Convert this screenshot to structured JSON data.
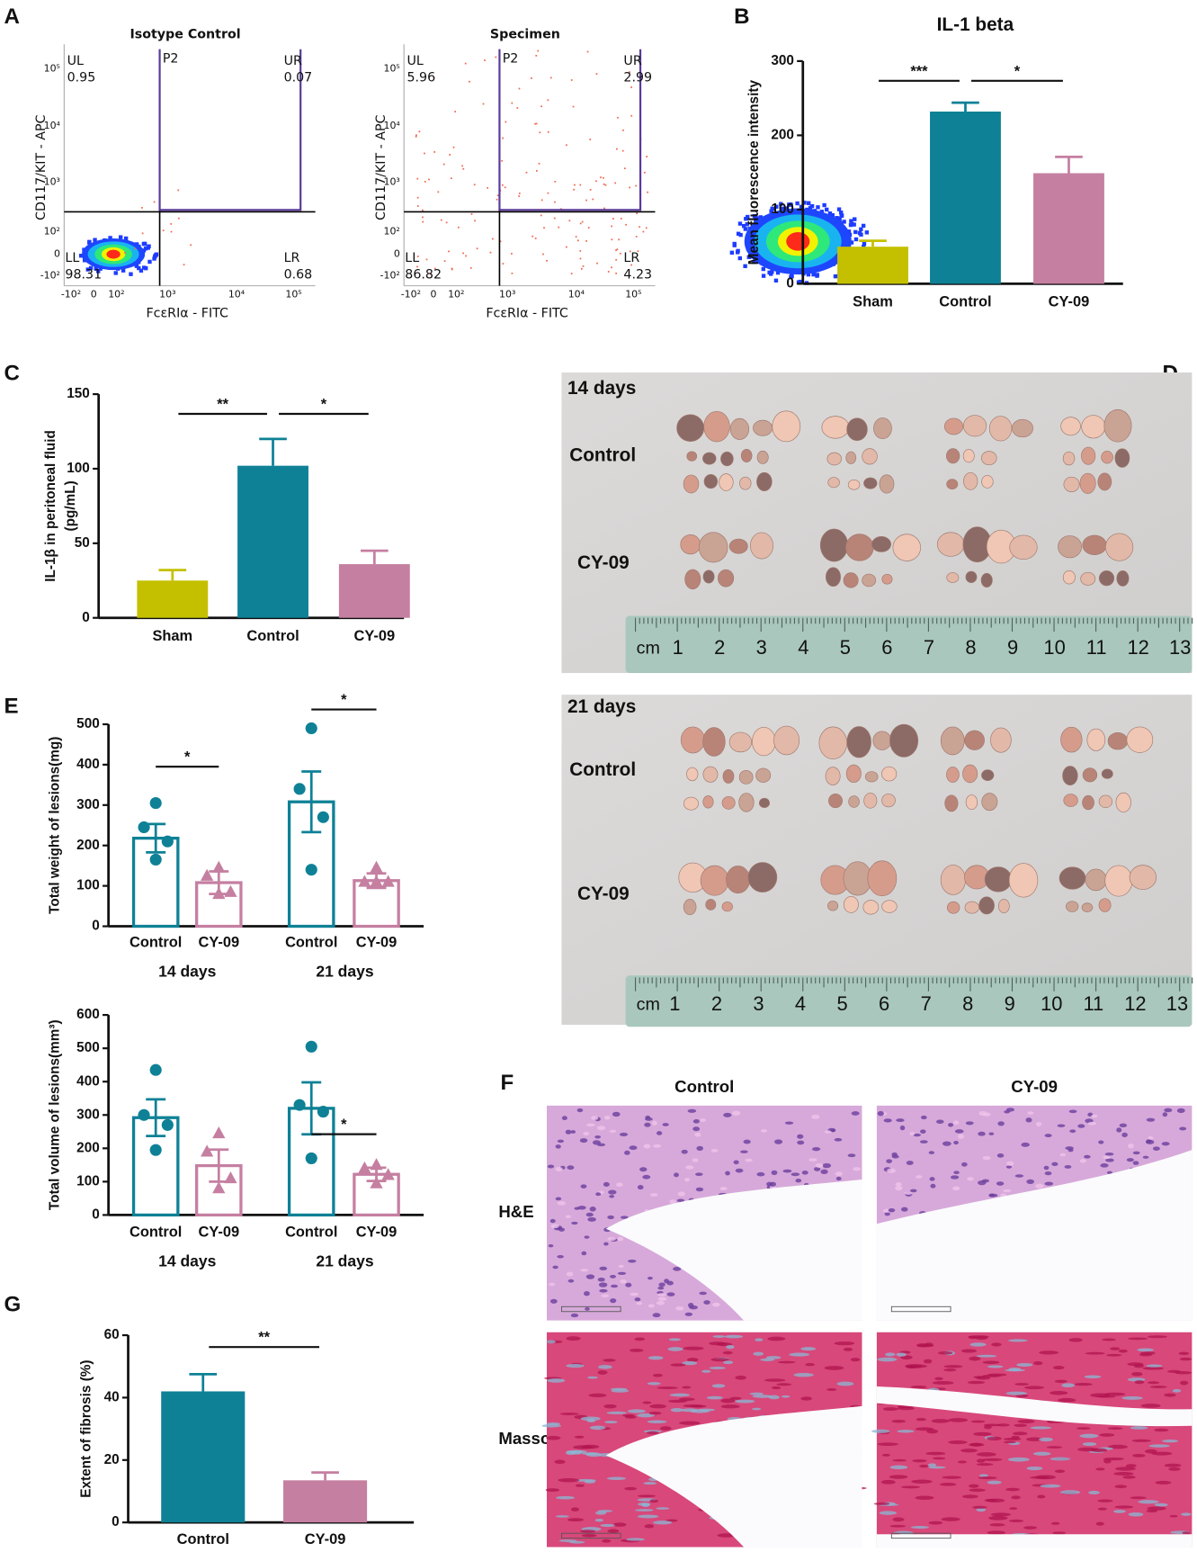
{
  "flow_cytometry": {
    "panel": "A",
    "xlabel": "FcεRIα - FITC",
    "ylabel": "CD117/KIT - APC",
    "xticks": [
      "-10²",
      "0",
      "10²",
      "10³",
      "10⁴",
      "10⁵"
    ],
    "yticks": [
      "10⁵",
      "10⁴",
      "10³",
      "10²",
      "0",
      "-10²"
    ],
    "plots": [
      {
        "title": "Isotype Control",
        "gate": "P2",
        "quadrants": [
          {
            "name": "UL",
            "value": "0.95"
          },
          {
            "name": "UR",
            "value": "0.07"
          },
          {
            "name": "LL",
            "value": "98.31"
          },
          {
            "name": "LR",
            "value": "0.68"
          }
        ]
      },
      {
        "title": "Specimen",
        "gate": "P2",
        "quadrants": [
          {
            "name": "UL",
            "value": "5.96"
          },
          {
            "name": "UR",
            "value": "2.99"
          },
          {
            "name": "LL",
            "value": "86.82"
          },
          {
            "name": "LR",
            "value": "4.23"
          }
        ]
      }
    ]
  },
  "chart_data": [
    {
      "type": "bar",
      "panel": "B",
      "title": "IL-1 beta",
      "ylabel": "Mean fluorescence intensity",
      "categories": [
        "Sham",
        "Control",
        "CY-09"
      ],
      "values": [
        50,
        232,
        149
      ],
      "errors": [
        8,
        12,
        22
      ],
      "colors": [
        "#c4c000",
        "#0e8196",
        "#c57fa1"
      ],
      "bar_style": "filled",
      "error_bars": "up",
      "ylim": [
        0,
        300
      ],
      "yticks": [
        0,
        100,
        200,
        300
      ],
      "annotations": [
        {
          "text": "***",
          "span": [
            0,
            1
          ]
        },
        {
          "text": "*",
          "span": [
            1,
            2
          ]
        }
      ]
    },
    {
      "type": "bar",
      "panel": "C",
      "ylabel": [
        "IL-1β in peritoneal fluid",
        "(pg/mL)"
      ],
      "categories": [
        "Sham",
        "Control",
        "CY-09"
      ],
      "values": [
        25,
        102,
        36
      ],
      "errors": [
        7,
        18,
        9
      ],
      "colors": [
        "#c4c000",
        "#0e8196",
        "#c57fa1"
      ],
      "bar_style": "filled",
      "error_bars": "up",
      "ylim": [
        0,
        150
      ],
      "yticks": [
        0,
        50,
        100,
        150
      ],
      "annotations": [
        {
          "text": "**",
          "span": [
            0,
            1
          ]
        },
        {
          "text": "*",
          "span": [
            1,
            2
          ]
        }
      ]
    },
    {
      "type": "bar",
      "panel": "E",
      "ylabel": "Total weight of lesions(mg)",
      "categories": [
        "Control",
        "CY-09",
        "Control",
        "CY-09"
      ],
      "groups": [
        "14 days",
        "21 days"
      ],
      "values": [
        218,
        108,
        308,
        113
      ],
      "errors": [
        35,
        28,
        75,
        18
      ],
      "points": [
        [
          305,
          245,
          210,
          165
        ],
        [
          145,
          125,
          85,
          80
        ],
        [
          490,
          340,
          270,
          140
        ],
        [
          145,
          110,
          110,
          110
        ]
      ],
      "markers": [
        "circle",
        "triangle",
        "circle",
        "triangle"
      ],
      "colors": [
        "#0e8196",
        "#c57fa1",
        "#0e8196",
        "#c57fa1"
      ],
      "bar_style": "outline",
      "error_bars": "both",
      "ylim": [
        0,
        500
      ],
      "yticks": [
        0,
        100,
        200,
        300,
        400,
        500
      ],
      "annotations": [
        {
          "text": "*",
          "span": [
            0,
            1
          ]
        },
        {
          "text": "*",
          "span": [
            2,
            3
          ]
        }
      ]
    },
    {
      "type": "bar",
      "ylabel": "Total volume of lesions(mm³)",
      "categories": [
        "Control",
        "CY-09",
        "Control",
        "CY-09"
      ],
      "groups": [
        "14 days",
        "21 days"
      ],
      "values": [
        292,
        148,
        320,
        122
      ],
      "errors": [
        55,
        48,
        78,
        20
      ],
      "points": [
        [
          435,
          300,
          270,
          195
        ],
        [
          245,
          190,
          110,
          80
        ],
        [
          505,
          330,
          310,
          170
        ],
        [
          150,
          140,
          120,
          95
        ]
      ],
      "markers": [
        "circle",
        "triangle",
        "circle",
        "triangle"
      ],
      "colors": [
        "#0e8196",
        "#c57fa1",
        "#0e8196",
        "#c57fa1"
      ],
      "bar_style": "outline",
      "error_bars": "both",
      "ylim": [
        0,
        600
      ],
      "yticks": [
        0,
        100,
        200,
        300,
        400,
        500,
        600
      ],
      "annotations": [
        {
          "text": "*",
          "span": [
            2,
            3
          ]
        }
      ]
    },
    {
      "type": "bar",
      "panel": "G",
      "ylabel": "Extent of fibrosis (%)",
      "categories": [
        "Control",
        "CY-09"
      ],
      "values": [
        42,
        13.5
      ],
      "errors": [
        5.5,
        2.5
      ],
      "colors": [
        "#0e8196",
        "#c57fa1"
      ],
      "bar_style": "filled",
      "error_bars": "up",
      "ylim": [
        0,
        60
      ],
      "yticks": [
        0,
        20,
        40,
        60
      ],
      "annotations": [
        {
          "text": "**",
          "span": [
            0,
            1
          ]
        }
      ]
    }
  ],
  "photos": {
    "panel": "D",
    "timepoints": [
      {
        "label": "14 days",
        "groups": [
          "Control",
          "CY-09"
        ]
      },
      {
        "label": "21 days",
        "groups": [
          "Control",
          "CY-09"
        ]
      }
    ],
    "ruler": {
      "unit": "cm",
      "numbers": [
        1,
        2,
        3,
        4,
        5,
        6,
        7,
        8,
        9,
        10,
        11,
        12,
        13
      ]
    }
  },
  "histology": {
    "panel": "F",
    "columns": [
      "Control",
      "CY-09"
    ],
    "rows": [
      "H&E",
      "Masson"
    ]
  }
}
